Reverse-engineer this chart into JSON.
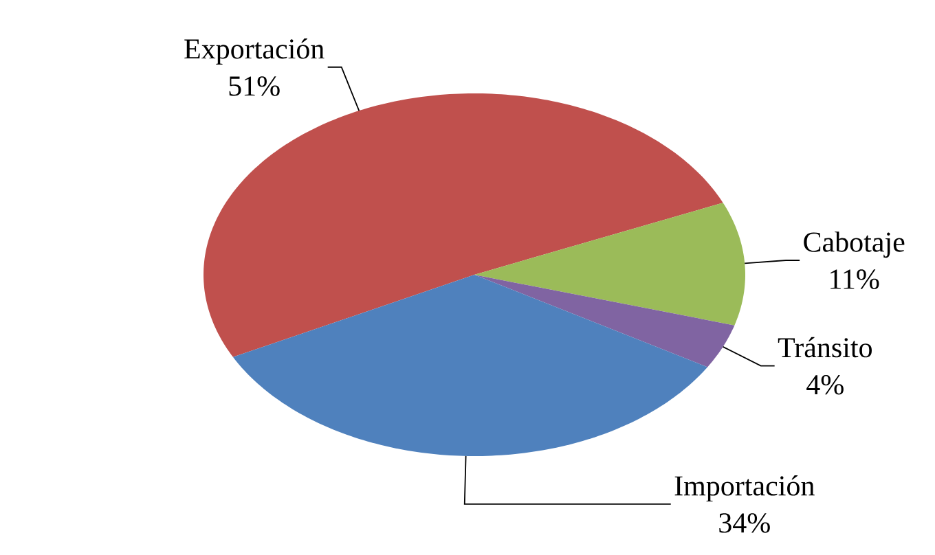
{
  "chart_data": {
    "type": "pie",
    "categories": [
      "Exportación",
      "Cabotaje",
      "Tránsito",
      "Importación"
    ],
    "values": [
      51,
      11,
      4,
      34
    ],
    "colors": [
      "#c0504d",
      "#9bbb59",
      "#8064a2",
      "#4f81bd"
    ],
    "value_labels": [
      "51%",
      "11%",
      "4%",
      "34%"
    ]
  }
}
